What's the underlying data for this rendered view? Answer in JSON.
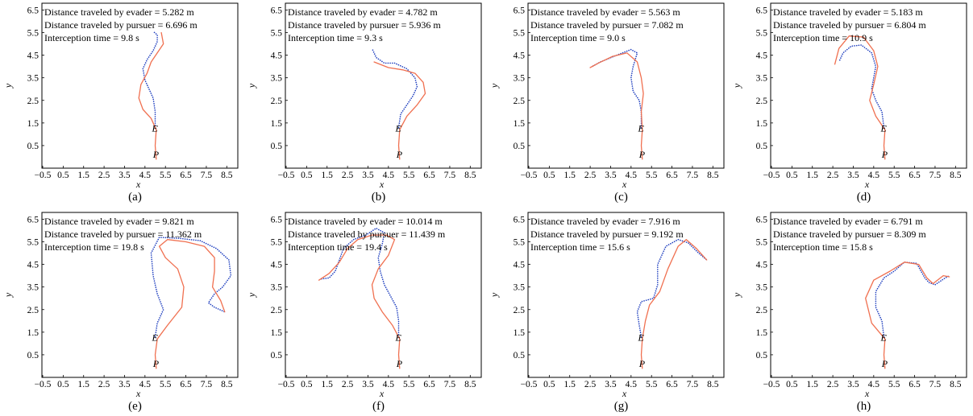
{
  "colors": {
    "evader": "#1f3fbf",
    "pursuer": "#f07050",
    "frame": "#000000"
  },
  "chart_data": [
    {
      "type": "line",
      "panel": "(a)",
      "xlabel": "x",
      "ylabel": "y",
      "xlim": [
        -0.5,
        9.0
      ],
      "ylim": [
        -0.5,
        6.8
      ],
      "xticks": [
        "−0.5",
        "0.5",
        "1.5",
        "2.5",
        "3.5",
        "4.5",
        "5.5",
        "6.5",
        "7.5",
        "8.5"
      ],
      "yticks": [
        "0.5",
        "1.5",
        "2.5",
        "3.5",
        "4.5",
        "5.5",
        "6.5"
      ],
      "annotations": [
        "Distance traveled by evader = 5.282 m",
        "Distance traveled by pursuer = 6.696 m",
        "Interception time = 9.8 s"
      ],
      "markers": {
        "evader_start": "E",
        "pursuer_start": "P"
      },
      "series": [
        {
          "role": "evader",
          "style": "dotted",
          "x": [
            5.0,
            5.0,
            4.9,
            4.7,
            4.5,
            4.4,
            4.6,
            4.9,
            5.1,
            5.1,
            4.9
          ],
          "y": [
            1.3,
            2.0,
            2.6,
            3.0,
            3.4,
            3.9,
            4.3,
            4.7,
            5.1,
            5.4,
            5.55
          ]
        },
        {
          "role": "pursuer",
          "style": "solid",
          "x": [
            5.05,
            5.0,
            5.05,
            4.8,
            4.4,
            4.2,
            4.3,
            4.6,
            4.8,
            5.1,
            5.4,
            5.3
          ],
          "y": [
            -0.1,
            0.5,
            1.2,
            1.7,
            2.1,
            2.6,
            3.2,
            3.7,
            4.2,
            4.6,
            5.0,
            5.5
          ]
        }
      ]
    },
    {
      "type": "line",
      "panel": "(b)",
      "xlabel": "x",
      "ylabel": "y",
      "xlim": [
        -0.5,
        9.0
      ],
      "ylim": [
        -0.5,
        6.8
      ],
      "xticks": [
        "−0.5",
        "0.5",
        "1.5",
        "2.5",
        "3.5",
        "4.5",
        "5.5",
        "6.5",
        "7.5",
        "8.5"
      ],
      "yticks": [
        "0.5",
        "1.5",
        "2.5",
        "3.5",
        "4.5",
        "5.5",
        "6.5"
      ],
      "annotations": [
        "Distance traveled by evader = 4.782 m",
        "Distance traveled by pursuer = 5.936 m",
        "Interception time = 9.3 s"
      ],
      "markers": {
        "evader_start": "E",
        "pursuer_start": "P"
      },
      "series": [
        {
          "role": "evader",
          "style": "dotted",
          "x": [
            5.0,
            5.1,
            5.4,
            5.7,
            5.9,
            5.8,
            5.4,
            4.8,
            4.3,
            3.9,
            3.7
          ],
          "y": [
            1.3,
            1.9,
            2.3,
            2.7,
            3.1,
            3.5,
            3.9,
            4.15,
            4.15,
            4.4,
            4.8
          ]
        },
        {
          "role": "pursuer",
          "style": "solid",
          "x": [
            5.05,
            5.0,
            5.05,
            5.4,
            5.9,
            6.3,
            6.2,
            5.8,
            5.2,
            4.5,
            3.8
          ],
          "y": [
            -0.1,
            0.5,
            1.2,
            1.8,
            2.3,
            2.8,
            3.3,
            3.7,
            3.85,
            3.95,
            4.2
          ]
        }
      ]
    },
    {
      "type": "line",
      "panel": "(c)",
      "xlabel": "x",
      "ylabel": "y",
      "xlim": [
        -0.5,
        9.0
      ],
      "ylim": [
        -0.5,
        6.8
      ],
      "xticks": [
        "−0.5",
        "0.5",
        "1.5",
        "2.5",
        "3.5",
        "4.5",
        "5.5",
        "6.5",
        "7.5",
        "8.5"
      ],
      "yticks": [
        "0.5",
        "1.5",
        "2.5",
        "3.5",
        "4.5",
        "5.5",
        "6.5"
      ],
      "annotations": [
        "Distance traveled by evader = 5.563 m",
        "Distance traveled by pursuer = 7.082 m",
        "Interception time = 9.0 s"
      ],
      "markers": {
        "evader_start": "E",
        "pursuer_start": "P"
      },
      "series": [
        {
          "role": "evader",
          "style": "dotted",
          "x": [
            5.0,
            5.0,
            4.9,
            4.6,
            4.5,
            4.6,
            4.8,
            4.5,
            3.8,
            3.0,
            2.6
          ],
          "y": [
            1.3,
            2.0,
            2.5,
            2.9,
            3.5,
            4.0,
            4.6,
            4.75,
            4.5,
            4.2,
            4.0
          ]
        },
        {
          "role": "pursuer",
          "style": "solid",
          "x": [
            5.05,
            5.0,
            5.05,
            5.0,
            5.1,
            5.0,
            4.8,
            4.3,
            3.6,
            2.9,
            2.5
          ],
          "y": [
            -0.1,
            0.5,
            1.2,
            2.0,
            2.8,
            3.5,
            4.2,
            4.6,
            4.45,
            4.15,
            3.95
          ]
        }
      ]
    },
    {
      "type": "line",
      "panel": "(d)",
      "xlabel": "x",
      "ylabel": "y",
      "xlim": [
        -0.5,
        9.0
      ],
      "ylim": [
        -0.5,
        6.8
      ],
      "xticks": [
        "−0.5",
        "0.5",
        "1.5",
        "2.5",
        "3.5",
        "4.5",
        "5.5",
        "6.5",
        "7.5",
        "8.5"
      ],
      "yticks": [
        "0.5",
        "1.5",
        "2.5",
        "3.5",
        "4.5",
        "5.5",
        "6.5"
      ],
      "annotations": [
        "Distance traveled by evader = 5.183 m",
        "Distance traveled by pursuer = 6.804 m",
        "Interception time = 10.9 s"
      ],
      "markers": {
        "evader_start": "E",
        "pursuer_start": "P"
      },
      "series": [
        {
          "role": "evader",
          "style": "dotted",
          "x": [
            5.0,
            4.9,
            4.6,
            4.4,
            4.5,
            4.6,
            4.4,
            3.9,
            3.4,
            3.0,
            2.8
          ],
          "y": [
            1.3,
            2.0,
            2.5,
            3.0,
            3.5,
            4.0,
            4.6,
            4.95,
            4.9,
            4.6,
            4.2
          ]
        },
        {
          "role": "pursuer",
          "style": "solid",
          "x": [
            5.05,
            5.0,
            5.05,
            4.6,
            4.3,
            4.5,
            4.7,
            4.5,
            4.0,
            3.3,
            2.8,
            2.6
          ],
          "y": [
            -0.1,
            0.5,
            1.2,
            1.8,
            2.5,
            3.2,
            4.0,
            4.7,
            5.3,
            5.35,
            4.8,
            4.1
          ]
        }
      ]
    },
    {
      "type": "line",
      "panel": "(e)",
      "xlabel": "x",
      "ylabel": "y",
      "xlim": [
        -0.5,
        9.0
      ],
      "ylim": [
        -0.5,
        6.8
      ],
      "xticks": [
        "−0.5",
        "0.5",
        "1.5",
        "2.5",
        "3.5",
        "4.5",
        "5.5",
        "6.5",
        "7.5",
        "8.5"
      ],
      "yticks": [
        "0.5",
        "1.5",
        "2.5",
        "3.5",
        "4.5",
        "5.5",
        "6.5"
      ],
      "annotations": [
        "Distance traveled by evader = 9.821 m",
        "Distance traveled by pursuer = 11.362 m",
        "Interception time = 19.8 s"
      ],
      "markers": {
        "evader_start": "E",
        "pursuer_start": "P"
      },
      "series": [
        {
          "role": "evader",
          "style": "dotted",
          "x": [
            5.0,
            5.1,
            5.4,
            5.1,
            4.9,
            4.8,
            5.2,
            6.2,
            7.2,
            8.0,
            8.6,
            8.7,
            8.3,
            7.9,
            7.6,
            7.9,
            8.4
          ],
          "y": [
            1.3,
            1.9,
            2.5,
            3.2,
            4.0,
            5.0,
            5.7,
            5.65,
            5.55,
            5.2,
            4.7,
            4.0,
            3.5,
            3.2,
            2.8,
            2.6,
            2.4
          ]
        },
        {
          "role": "pursuer",
          "style": "solid",
          "x": [
            5.05,
            5.0,
            5.1,
            5.6,
            6.3,
            6.4,
            6.1,
            5.5,
            5.2,
            5.6,
            6.5,
            7.4,
            7.9,
            7.9,
            7.8,
            8.2,
            8.4
          ],
          "y": [
            -0.1,
            0.5,
            1.2,
            1.8,
            2.6,
            3.5,
            4.3,
            4.8,
            5.3,
            5.6,
            5.5,
            5.3,
            4.8,
            4.2,
            3.5,
            2.9,
            2.4
          ]
        }
      ]
    },
    {
      "type": "line",
      "panel": "(f)",
      "xlabel": "x",
      "ylabel": "y",
      "xlim": [
        -0.5,
        9.0
      ],
      "ylim": [
        -0.5,
        6.8
      ],
      "xticks": [
        "−0.5",
        "0.5",
        "1.5",
        "2.5",
        "3.5",
        "4.5",
        "5.5",
        "6.5",
        "7.5",
        "8.5"
      ],
      "yticks": [
        "0.5",
        "1.5",
        "2.5",
        "3.5",
        "4.5",
        "5.5",
        "6.5"
      ],
      "annotations": [
        "Distance traveled by evader = 10.014 m",
        "Distance traveled by pursuer = 11.439 m",
        "Interception time = 19.4 s"
      ],
      "markers": {
        "evader_start": "E",
        "pursuer_start": "P"
      },
      "series": [
        {
          "role": "evader",
          "style": "dotted",
          "x": [
            5.0,
            5.0,
            4.9,
            4.6,
            4.3,
            4.1,
            4.0,
            4.2,
            4.3,
            3.9,
            3.4,
            2.8,
            2.3,
            2.1,
            1.9,
            1.6,
            1.2
          ],
          "y": [
            1.3,
            2.0,
            2.6,
            3.1,
            3.6,
            4.2,
            4.8,
            5.4,
            5.9,
            6.1,
            5.8,
            5.6,
            5.2,
            4.7,
            4.2,
            3.9,
            3.85
          ]
        },
        {
          "role": "pursuer",
          "style": "solid",
          "x": [
            5.05,
            5.0,
            5.05,
            4.7,
            4.2,
            3.8,
            3.7,
            4.0,
            4.5,
            4.8,
            4.4,
            3.7,
            3.0,
            2.5,
            2.1,
            1.6,
            1.1
          ],
          "y": [
            -0.1,
            0.5,
            1.2,
            1.8,
            2.4,
            3.0,
            3.6,
            4.3,
            4.9,
            5.6,
            5.8,
            5.8,
            5.6,
            5.2,
            4.6,
            4.1,
            3.8
          ]
        }
      ]
    },
    {
      "type": "line",
      "panel": "(g)",
      "xlabel": "x",
      "ylabel": "y",
      "xlim": [
        -0.5,
        9.0
      ],
      "ylim": [
        -0.5,
        6.8
      ],
      "xticks": [
        "−0.5",
        "0.5",
        "1.5",
        "2.5",
        "3.5",
        "4.5",
        "5.5",
        "6.5",
        "7.5",
        "8.5"
      ],
      "yticks": [
        "0.5",
        "1.5",
        "2.5",
        "3.5",
        "4.5",
        "5.5",
        "6.5"
      ],
      "annotations": [
        "Distance traveled by evader = 7.916 m",
        "Distance traveled by pursuer = 9.192 m",
        "Interception time = 15.6 s"
      ],
      "markers": {
        "evader_start": "E",
        "pursuer_start": "P"
      },
      "series": [
        {
          "role": "evader",
          "style": "dotted",
          "x": [
            5.0,
            4.9,
            4.8,
            5.0,
            5.6,
            5.8,
            5.8,
            6.2,
            6.8,
            7.3,
            7.8,
            8.2
          ],
          "y": [
            1.3,
            1.8,
            2.4,
            2.85,
            3.0,
            3.6,
            4.5,
            5.3,
            5.6,
            5.45,
            5.0,
            4.7
          ]
        },
        {
          "role": "pursuer",
          "style": "solid",
          "x": [
            5.05,
            5.0,
            5.05,
            5.2,
            5.4,
            5.9,
            6.3,
            6.8,
            7.2,
            7.7,
            8.2
          ],
          "y": [
            -0.1,
            0.5,
            1.2,
            2.0,
            2.7,
            3.3,
            4.3,
            5.3,
            5.6,
            5.2,
            4.7
          ]
        }
      ]
    },
    {
      "type": "line",
      "panel": "(h)",
      "xlabel": "x",
      "ylabel": "y",
      "xlim": [
        -0.5,
        9.0
      ],
      "ylim": [
        -0.5,
        6.8
      ],
      "xticks": [
        "−0.5",
        "0.5",
        "1.5",
        "2.5",
        "3.5",
        "4.5",
        "5.5",
        "6.5",
        "7.5",
        "8.5"
      ],
      "yticks": [
        "0.5",
        "1.5",
        "2.5",
        "3.5",
        "4.5",
        "5.5",
        "6.5"
      ],
      "annotations": [
        "Distance traveled by evader = 6.791 m",
        "Distance traveled by pursuer = 8.309 m",
        "Interception time = 15.8 s"
      ],
      "markers": {
        "evader_start": "E",
        "pursuer_start": "P"
      },
      "series": [
        {
          "role": "evader",
          "style": "dotted",
          "x": [
            5.0,
            4.9,
            4.6,
            4.6,
            5.0,
            5.5,
            6.0,
            6.6,
            7.0,
            7.2,
            7.5,
            8.0,
            8.2
          ],
          "y": [
            1.3,
            2.0,
            2.6,
            3.3,
            3.9,
            4.2,
            4.6,
            4.55,
            3.9,
            3.7,
            3.6,
            3.9,
            4.0
          ]
        },
        {
          "role": "pursuer",
          "style": "solid",
          "x": [
            5.05,
            5.0,
            5.05,
            4.4,
            4.1,
            4.5,
            5.3,
            6.0,
            6.7,
            7.1,
            7.4,
            7.9,
            8.2
          ],
          "y": [
            -0.1,
            0.5,
            1.2,
            1.9,
            3.0,
            3.8,
            4.2,
            4.6,
            4.5,
            3.9,
            3.65,
            4.0,
            3.95
          ]
        }
      ]
    }
  ]
}
